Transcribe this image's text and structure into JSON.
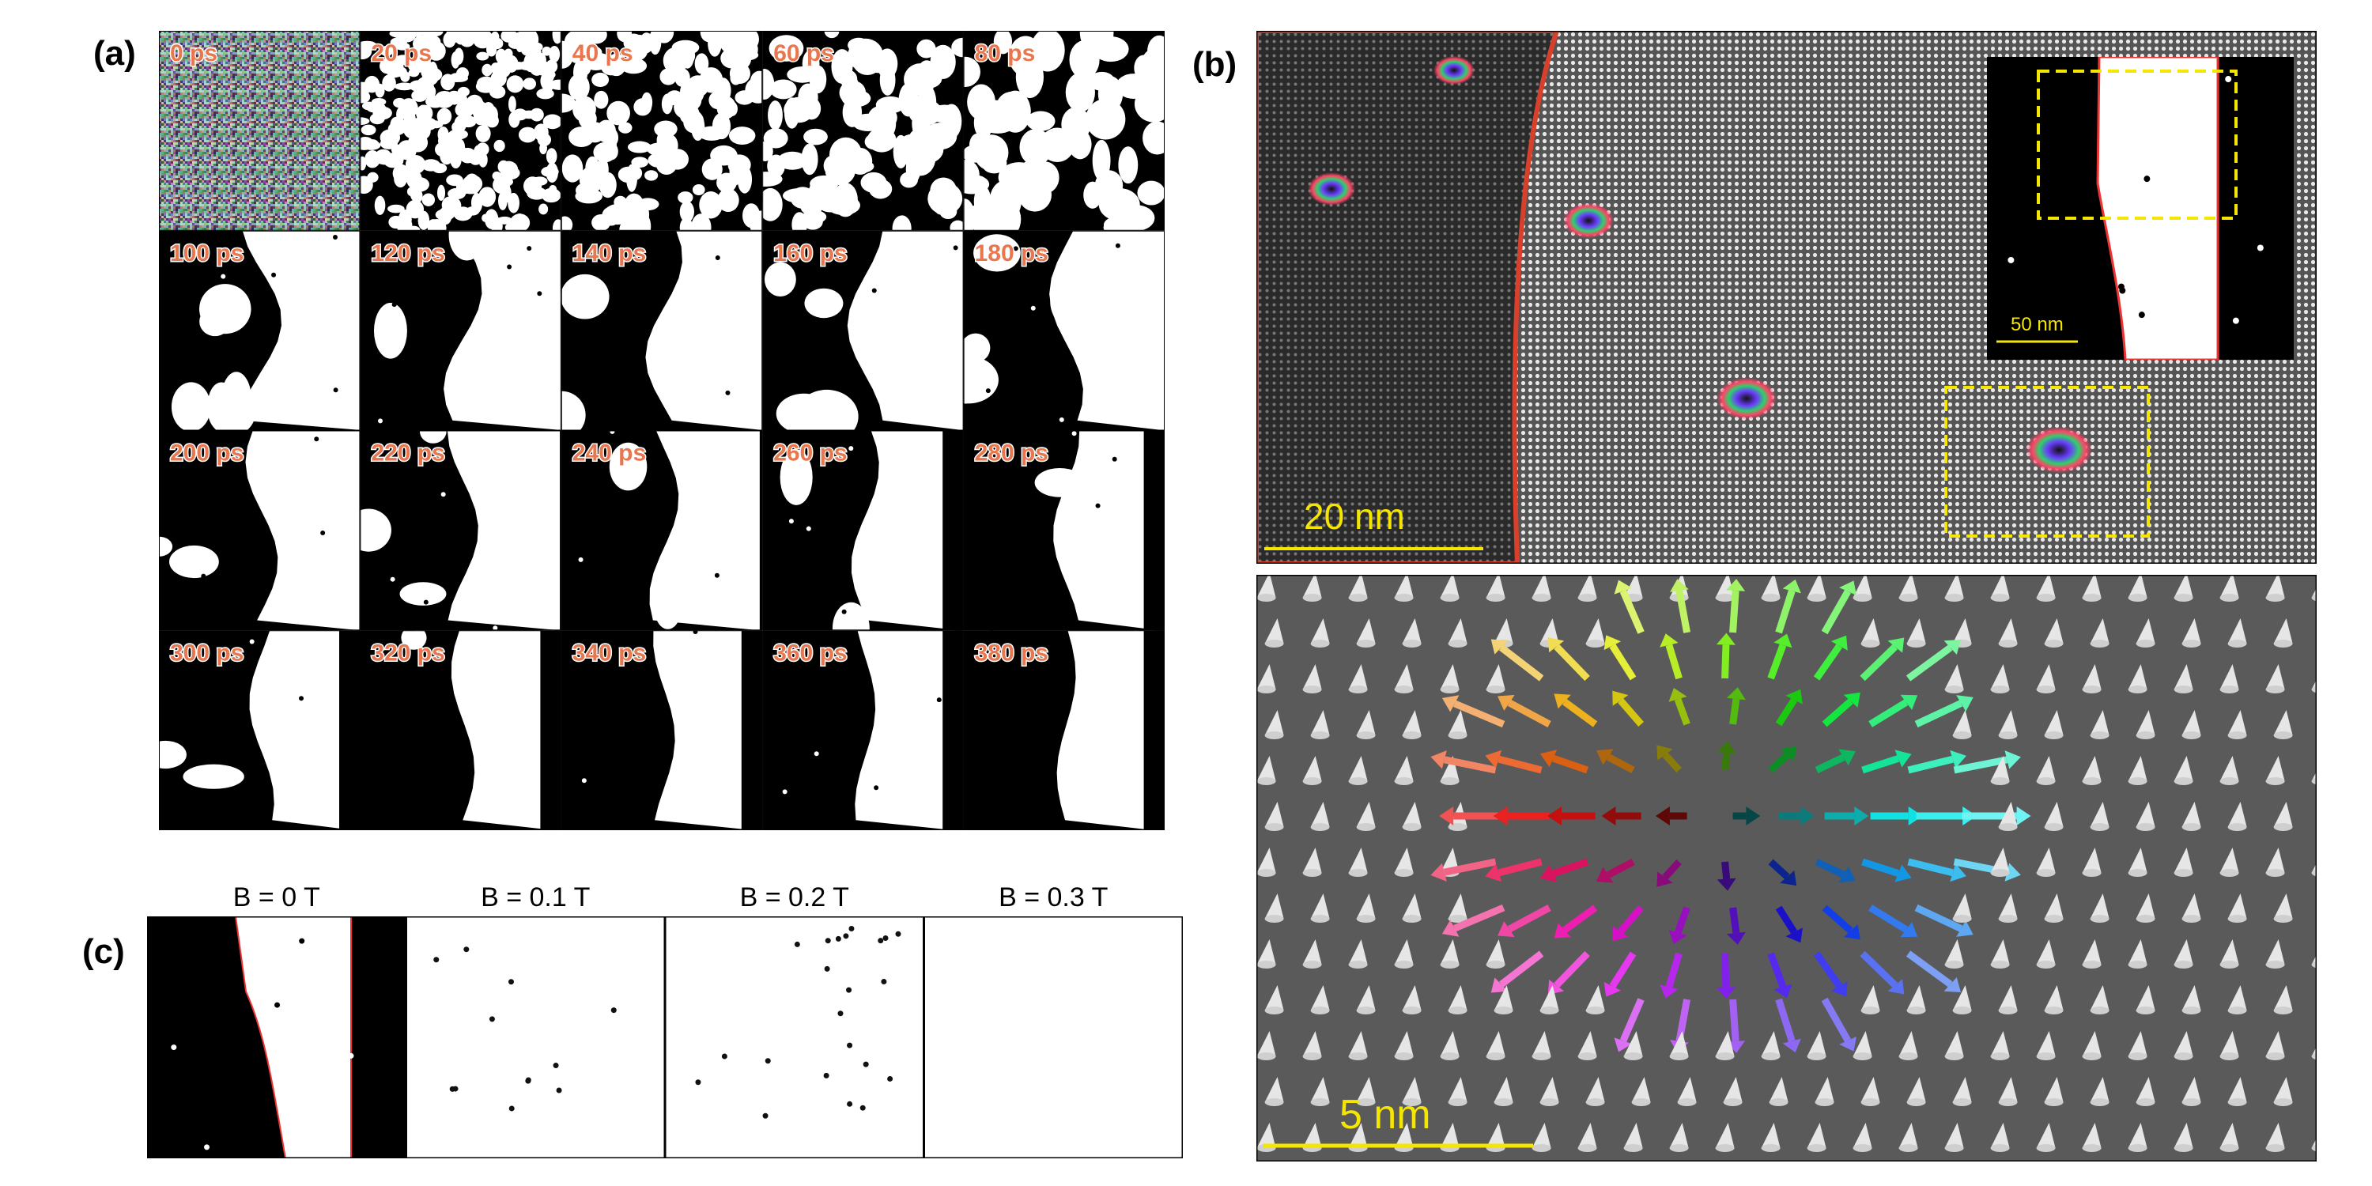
{
  "panels": {
    "a": {
      "label": "(a)",
      "frames": [
        "0 ps",
        "20 ps",
        "40 ps",
        "60 ps",
        "80 ps",
        "100 ps",
        "120 ps",
        "140 ps",
        "160 ps",
        "180 ps",
        "200 ps",
        "220 ps",
        "240 ps",
        "260 ps",
        "280 ps",
        "300 ps",
        "320 ps",
        "340 ps",
        "360 ps",
        "380 ps"
      ]
    },
    "b": {
      "label": "(b)",
      "scale_bar": "20 nm",
      "inset_scale_bar": "50 nm",
      "zoom_scale_bar": "5 nm"
    },
    "c": {
      "label": "(c)",
      "fields": [
        "B = 0 T",
        "B = 0.1 T",
        "B = 0.2 T",
        "B = 0.3 T"
      ]
    }
  }
}
